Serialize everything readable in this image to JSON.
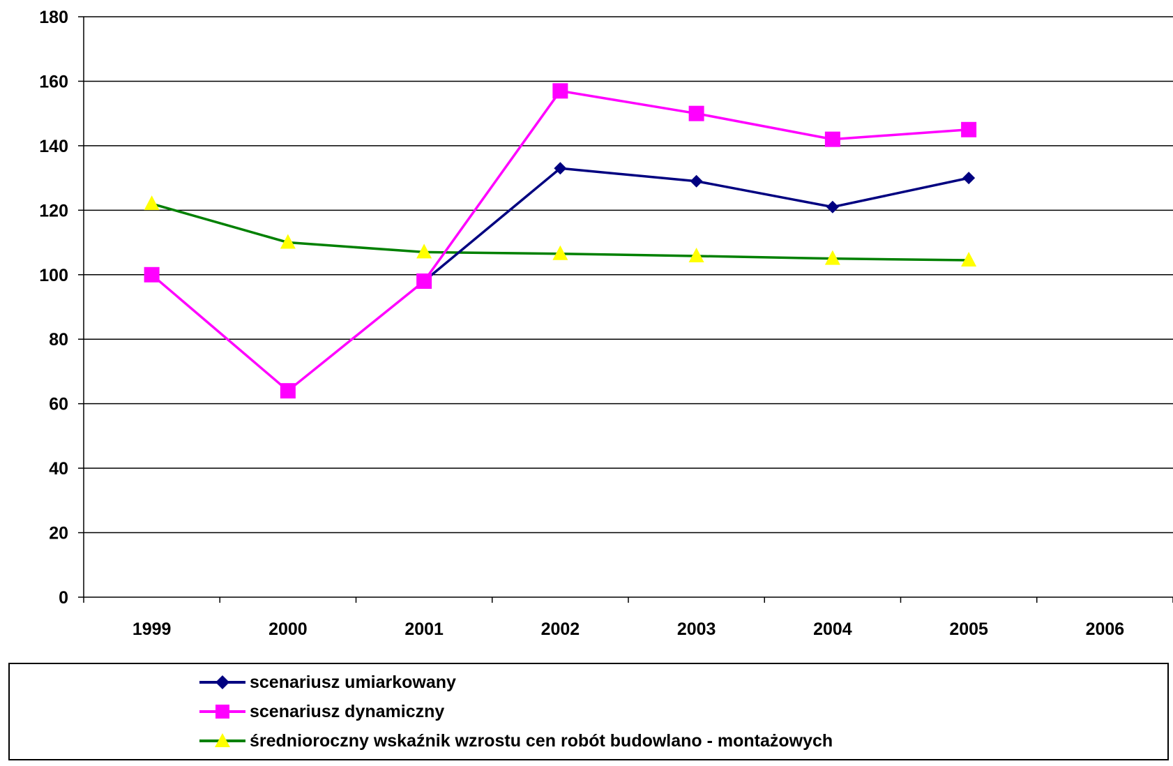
{
  "chart_data": {
    "type": "line",
    "categories": [
      "1999",
      "2000",
      "2001",
      "2002",
      "2003",
      "2004",
      "2005",
      "2006"
    ],
    "ylim": [
      0,
      180
    ],
    "yticks": [
      0,
      20,
      40,
      60,
      80,
      100,
      120,
      140,
      160,
      180
    ],
    "ytick_labels": [
      "0",
      "20",
      "40",
      "60",
      "80",
      "100",
      "120",
      "140",
      "160",
      "180"
    ],
    "grid": true,
    "legend_position": "bottom",
    "series": [
      {
        "name": "scenariusz umiarkowany",
        "values": [
          null,
          null,
          98,
          133,
          129,
          121,
          130,
          null
        ],
        "color": "#000080",
        "marker": "diamond"
      },
      {
        "name": "scenariusz dynamiczny",
        "values": [
          100,
          64,
          98,
          157,
          150,
          142,
          145,
          null
        ],
        "color": "#ff00ff",
        "marker": "square"
      },
      {
        "name": "średnioroczny wskaźnik wzrostu cen robót budowlano - montażowych",
        "values": [
          122,
          110,
          107,
          106.5,
          105.8,
          105,
          104.5,
          null
        ],
        "color": "#008000",
        "marker": "triangle",
        "marker_color": "#ffff00"
      }
    ]
  }
}
